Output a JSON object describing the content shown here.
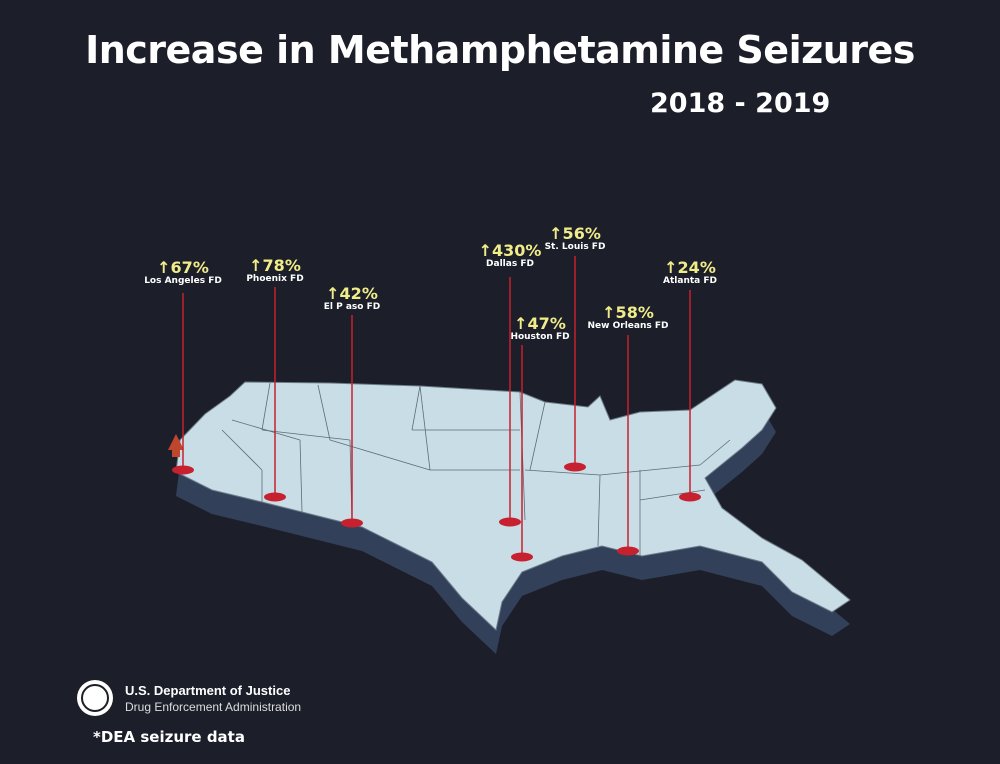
{
  "title": "Increase in Methamphetamine Seizures",
  "years": "2018 - 2019",
  "colors": {
    "background": "#1c1f29",
    "map_fill": "#c9dde6",
    "map_side": "#33405a",
    "pin": "#c7202e",
    "pct": "#f1ec8a"
  },
  "markers": [
    {
      "pct": "↑67%",
      "name": "Los Angeles FD"
    },
    {
      "pct": "↑78%",
      "name": "Phoenix FD"
    },
    {
      "pct": "↑42%",
      "name": "El P aso FD"
    },
    {
      "pct": "↑430%",
      "name": "Dallas FD"
    },
    {
      "pct": "↑47%",
      "name": "Houston FD"
    },
    {
      "pct": "↑56%",
      "name": "St. Louis FD"
    },
    {
      "pct": "↑58%",
      "name": "New Orleans FD"
    },
    {
      "pct": "↑24%",
      "name": "Atlanta FD"
    }
  ],
  "footer": {
    "org": "U.S. Department of Justice",
    "agency": "Drug Enforcement Administration",
    "note": "*DEA seizure data"
  }
}
